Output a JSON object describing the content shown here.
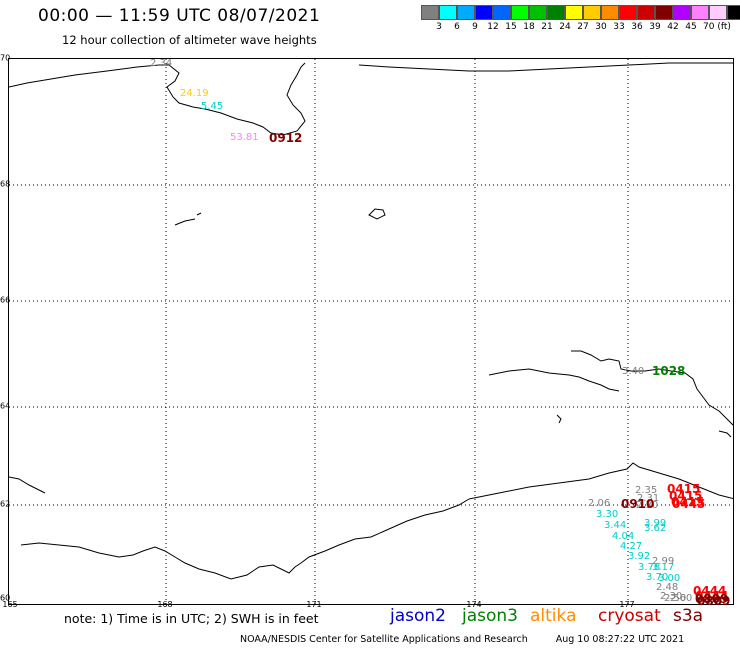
{
  "header": {
    "title": "00:00 — 11:59 UTC 08/07/2021",
    "subtitle": "12 hour collection of altimeter wave heights"
  },
  "legend": {
    "colors": [
      "#808080",
      "#00ffff",
      "#00aaff",
      "#0000ff",
      "#0066ff",
      "#00ff00",
      "#00c000",
      "#008000",
      "#ffff00",
      "#ffcc00",
      "#ff8c00",
      "#ff0000",
      "#cc0000",
      "#800000",
      "#b000ff",
      "#ff80ff",
      "#ffccff",
      "#000000"
    ],
    "labels": [
      "3",
      "6",
      "9",
      "12",
      "15",
      "18",
      "21",
      "24",
      "27",
      "30",
      "33",
      "36",
      "39",
      "42",
      "45",
      "70 (ft)"
    ]
  },
  "axes": {
    "lat_labels": [
      "70",
      "68",
      "66",
      "64",
      "62",
      "60"
    ],
    "lon_labels": [
      "165",
      "168",
      "171",
      "174",
      "177"
    ]
  },
  "footer": {
    "note": "note: 1) Time is in UTC; 2) SWH is in feet",
    "credit": "NOAA/NESDIS Center for Satellite Applications and Research",
    "timestamp": "Aug 10 08:27:22 UTC 2021"
  },
  "satellites": [
    {
      "name": "jason2",
      "color": "#0000cc"
    },
    {
      "name": "jason3",
      "color": "#008000"
    },
    {
      "name": "altika",
      "color": "#ff8c00"
    },
    {
      "name": "cryosat",
      "color": "#cc0000"
    },
    {
      "name": "s3a",
      "color": "#800000"
    }
  ],
  "observations": [
    {
      "text": "2.34",
      "color": "#808080"
    },
    {
      "text": "24.19",
      "color": "#ffcc00"
    },
    {
      "text": "5.45",
      "color": "#00cccc"
    },
    {
      "text": "53.81",
      "color": "#ff80ff"
    },
    {
      "text": "3.40",
      "color": "#808080"
    },
    {
      "text": "2.35",
      "color": "#808080"
    },
    {
      "text": "2.31",
      "color": "#808080"
    },
    {
      "text": "2.06",
      "color": "#808080"
    },
    {
      "text": "2.30",
      "color": "#808080"
    },
    {
      "text": "3.30",
      "color": "#00cccc"
    },
    {
      "text": "3.44",
      "color": "#00cccc"
    },
    {
      "text": "3.99",
      "color": "#00cccc"
    },
    {
      "text": "3.62",
      "color": "#00cccc"
    },
    {
      "text": "4.04",
      "color": "#00cccc"
    },
    {
      "text": "4.27",
      "color": "#00cccc"
    },
    {
      "text": "3.92",
      "color": "#00cccc"
    },
    {
      "text": "2.99",
      "color": "#808080"
    },
    {
      "text": "3.78",
      "color": "#00cccc"
    },
    {
      "text": "3.17",
      "color": "#00cccc"
    },
    {
      "text": "3.70",
      "color": "#00cccc"
    },
    {
      "text": "3.00",
      "color": "#00cccc"
    },
    {
      "text": "2.48",
      "color": "#808080"
    },
    {
      "text": "2.30",
      "color": "#808080"
    },
    {
      "text": "2.50",
      "color": "#808080"
    },
    {
      "text": "2.60",
      "color": "#808080"
    }
  ],
  "time_marks": [
    {
      "text": "0912",
      "color": "#800000"
    },
    {
      "text": "1028",
      "color": "#008000"
    },
    {
      "text": "0415",
      "color": "#ff0000"
    },
    {
      "text": "0415",
      "color": "#ff0000"
    },
    {
      "text": "0415",
      "color": "#ff0000"
    },
    {
      "text": "0910",
      "color": "#800000"
    },
    {
      "text": "0445",
      "color": "#ff0000"
    },
    {
      "text": "0444",
      "color": "#ff0000"
    },
    {
      "text": "0444",
      "color": "#ff0000"
    },
    {
      "text": "0809",
      "color": "#800000"
    },
    {
      "text": "0809",
      "color": "#800000"
    }
  ]
}
